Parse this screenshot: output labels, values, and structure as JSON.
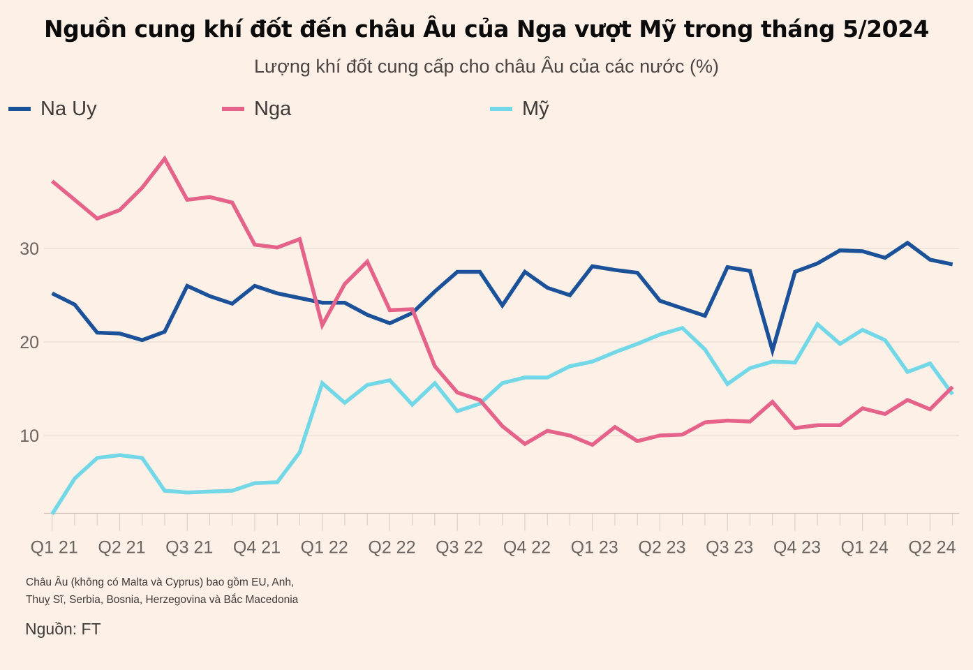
{
  "header": {
    "title": "Nguồn cung khí đốt đến châu Âu của Nga vượt Mỹ trong tháng 5/2024",
    "subtitle": "Lượng khí đốt cung cấp cho châu Âu của các nước (%)"
  },
  "legend": [
    {
      "label": "Na Uy",
      "color": "#1a5199"
    },
    {
      "label": "Nga",
      "color": "#e5638a"
    },
    {
      "label": "Mỹ",
      "color": "#72d7e6"
    }
  ],
  "footer": {
    "note_line1": "Châu Âu (không có Malta và Cyprus) bao gồm EU, Anh,",
    "note_line2": "Thuỵ Sĩ, Serbia, Bosnia, Herzegovina và Bắc Macedonia",
    "source": "Nguồn: FT"
  },
  "chart_data": {
    "type": "line",
    "title": "Nguồn cung khí đốt đến châu Âu của Nga vượt Mỹ trong tháng 5/2024",
    "subtitle": "Lượng khí đốt cung cấp cho châu Âu của các nước (%)",
    "xlabel": "",
    "ylabel": "",
    "x": [
      "2021-01",
      "2021-02",
      "2021-03",
      "2021-04",
      "2021-05",
      "2021-06",
      "2021-07",
      "2021-08",
      "2021-09",
      "2021-10",
      "2021-11",
      "2021-12",
      "2022-01",
      "2022-02",
      "2022-03",
      "2022-04",
      "2022-05",
      "2022-06",
      "2022-07",
      "2022-08",
      "2022-09",
      "2022-10",
      "2022-11",
      "2022-12",
      "2023-01",
      "2023-02",
      "2023-03",
      "2023-04",
      "2023-05",
      "2023-06",
      "2023-07",
      "2023-08",
      "2023-09",
      "2023-10",
      "2023-11",
      "2023-12",
      "2024-01",
      "2024-02",
      "2024-03",
      "2024-04",
      "2024-05"
    ],
    "x_tick_labels": [
      "Q1 21",
      "Q2 21",
      "Q3 21",
      "Q4 21",
      "Q1 22",
      "Q2 22",
      "Q3 22",
      "Q4 22",
      "Q1 23",
      "Q2 23",
      "Q3 23",
      "Q4 23",
      "Q1 24",
      "Q2 24"
    ],
    "y_ticks": [
      10,
      20,
      30
    ],
    "ylim": [
      1.6,
      40
    ],
    "grid": true,
    "legend_position": "top-left",
    "series": [
      {
        "name": "Na Uy",
        "color": "#1a5199",
        "values": [
          25.2,
          24.0,
          21.0,
          20.9,
          20.2,
          21.1,
          26.0,
          24.9,
          24.1,
          26.0,
          25.2,
          24.7,
          24.2,
          24.2,
          22.9,
          22.0,
          23.1,
          25.4,
          27.5,
          27.5,
          23.9,
          27.5,
          25.8,
          25.0,
          28.1,
          27.7,
          27.4,
          24.4,
          23.6,
          22.8,
          28.0,
          27.6,
          19.1,
          27.5,
          28.4,
          29.8,
          29.7,
          29.0,
          30.6,
          28.8,
          28.3
        ]
      },
      {
        "name": "Nga",
        "color": "#e5638a",
        "values": [
          37.2,
          35.2,
          33.2,
          34.1,
          36.5,
          39.6,
          35.2,
          35.5,
          34.9,
          30.4,
          30.1,
          31.0,
          21.8,
          26.2,
          28.6,
          23.4,
          23.5,
          17.4,
          14.6,
          13.8,
          11.0,
          9.1,
          10.5,
          10.0,
          9.0,
          10.9,
          9.4,
          10.0,
          10.1,
          11.4,
          11.6,
          11.5,
          13.6,
          10.8,
          11.1,
          11.1,
          12.9,
          12.3,
          13.8,
          12.8,
          15.2
        ]
      },
      {
        "name": "Mỹ",
        "color": "#72d7e6",
        "values": [
          1.6,
          5.4,
          7.6,
          7.9,
          7.6,
          4.1,
          3.9,
          4.0,
          4.1,
          4.9,
          5.0,
          8.2,
          15.6,
          13.5,
          15.4,
          15.9,
          13.3,
          15.6,
          12.6,
          13.4,
          15.6,
          16.2,
          16.2,
          17.4,
          17.9,
          18.9,
          19.8,
          20.8,
          21.5,
          19.2,
          15.5,
          17.2,
          17.9,
          17.8,
          21.9,
          19.8,
          21.3,
          20.2,
          16.8,
          17.7,
          14.4
        ]
      }
    ]
  }
}
